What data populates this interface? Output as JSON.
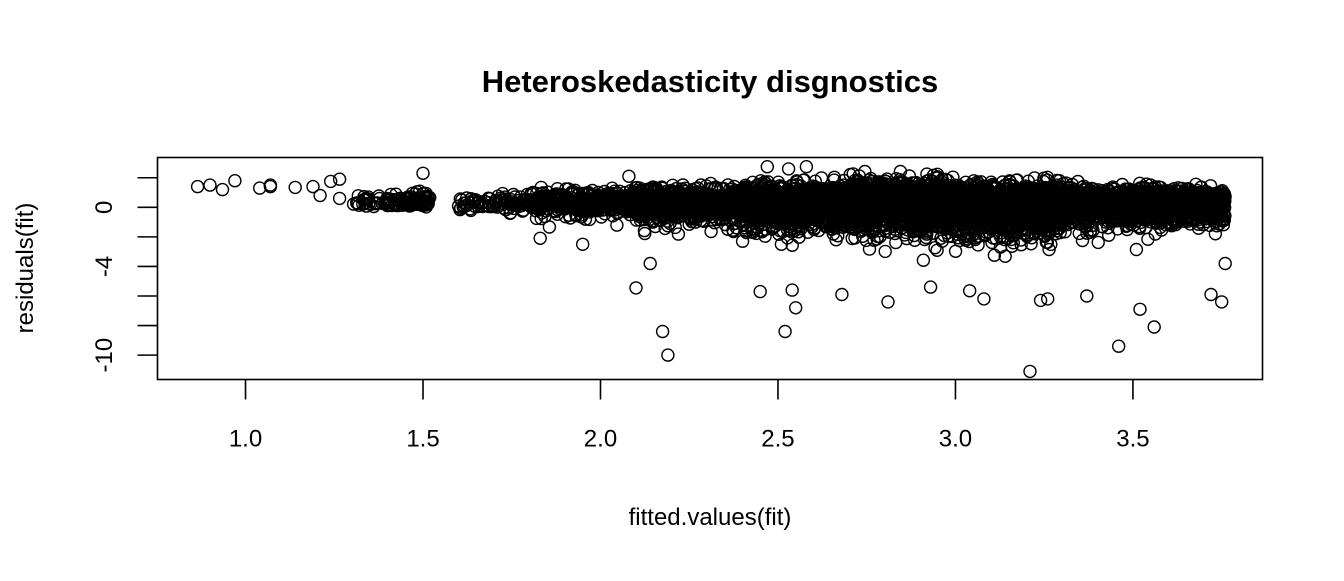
{
  "chart_data": {
    "type": "scatter",
    "title": "Heteroskedasticity disgnostics",
    "xlabel": "fitted.values(fit)",
    "ylabel": "residuals(fit)",
    "xlim": [
      0.752,
      3.865
    ],
    "ylim": [
      -11.65,
      3.37
    ],
    "x_ticks": [
      1.0,
      1.5,
      2.0,
      2.5,
      3.0,
      3.5
    ],
    "x_tick_labels": [
      "1.0",
      "1.5",
      "2.0",
      "2.5",
      "3.0",
      "3.5"
    ],
    "y_ticks": [
      2,
      0,
      -2,
      -4,
      -6,
      -8,
      -10
    ],
    "y_tick_labels": [
      {
        "value": 0,
        "label": "0"
      },
      {
        "value": -4,
        "label": "-4"
      },
      {
        "value": -10,
        "label": "-10"
      }
    ],
    "grid": false,
    "marker": "open-circle",
    "points": [
      [
        0.865,
        1.4
      ],
      [
        0.9,
        1.5
      ],
      [
        0.935,
        1.2
      ],
      [
        0.97,
        1.8
      ],
      [
        1.04,
        1.3
      ],
      [
        1.07,
        1.4
      ],
      [
        1.07,
        1.5
      ],
      [
        1.14,
        1.35
      ],
      [
        1.19,
        1.4
      ],
      [
        1.21,
        0.8
      ],
      [
        1.24,
        1.75
      ],
      [
        1.265,
        1.9
      ],
      [
        1.265,
        0.6
      ],
      [
        1.5,
        2.3
      ],
      [
        2.08,
        2.1
      ],
      [
        2.47,
        2.75
      ],
      [
        2.53,
        2.6
      ],
      [
        2.58,
        2.75
      ],
      [
        1.83,
        -2.1
      ],
      [
        1.95,
        -2.5
      ],
      [
        2.1,
        -5.45
      ],
      [
        2.14,
        -3.8
      ],
      [
        2.175,
        -8.4
      ],
      [
        2.19,
        -10.0
      ],
      [
        2.45,
        -5.7
      ],
      [
        2.52,
        -8.4
      ],
      [
        2.55,
        -6.8
      ],
      [
        2.54,
        -5.6
      ],
      [
        2.68,
        -5.9
      ],
      [
        2.81,
        -6.4
      ],
      [
        2.93,
        -5.4
      ],
      [
        3.04,
        -5.65
      ],
      [
        3.08,
        -6.2
      ],
      [
        3.21,
        -11.1
      ],
      [
        3.24,
        -6.3
      ],
      [
        3.26,
        -6.2
      ],
      [
        3.37,
        -6.0
      ],
      [
        3.46,
        -9.4
      ],
      [
        3.52,
        -6.9
      ],
      [
        3.56,
        -8.1
      ],
      [
        3.72,
        -5.9
      ],
      [
        3.75,
        -6.4
      ],
      [
        3.76,
        -3.8
      ]
    ],
    "dense_cloud_bands": [
      {
        "x": [
          1.3,
          1.45
        ],
        "y": [
          -0.2,
          1.3
        ],
        "n": 60
      },
      {
        "x": [
          1.45,
          1.52
        ],
        "y": [
          -0.1,
          1.5
        ],
        "n": 80
      },
      {
        "x": [
          1.6,
          1.8
        ],
        "y": [
          -0.8,
          1.2
        ],
        "n": 90
      },
      {
        "x": [
          1.8,
          2.1
        ],
        "y": [
          -1.5,
          1.6
        ],
        "n": 400
      },
      {
        "x": [
          2.1,
          2.4
        ],
        "y": [
          -2.5,
          1.8
        ],
        "n": 700
      },
      {
        "x": [
          2.4,
          2.7
        ],
        "y": [
          -3.5,
          2.2
        ],
        "n": 1000
      },
      {
        "x": [
          2.7,
          3.0
        ],
        "y": [
          -4.0,
          2.5
        ],
        "n": 1300
      },
      {
        "x": [
          3.0,
          3.3
        ],
        "y": [
          -4.5,
          2.2
        ],
        "n": 1200
      },
      {
        "x": [
          3.3,
          3.6
        ],
        "y": [
          -3.2,
          1.8
        ],
        "n": 900
      },
      {
        "x": [
          3.6,
          3.76
        ],
        "y": [
          -2.5,
          1.6
        ],
        "n": 600
      }
    ]
  }
}
